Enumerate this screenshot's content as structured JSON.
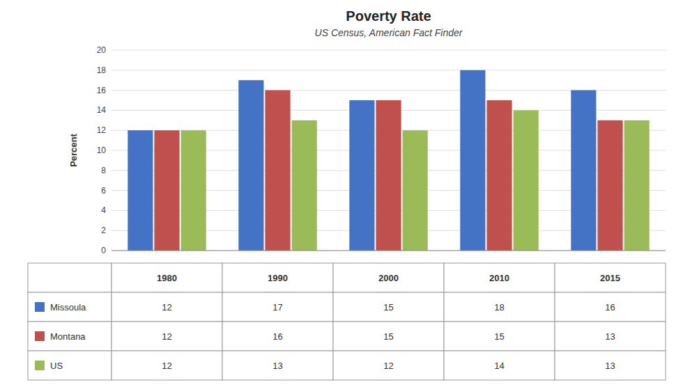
{
  "chart_data": {
    "type": "bar",
    "title": "Poverty Rate",
    "subtitle": "US Census, American Fact Finder",
    "ylabel": "Percent",
    "categories": [
      "1980",
      "1990",
      "2000",
      "2010",
      "2015"
    ],
    "series": [
      {
        "name": "Missoula",
        "color": "#4472C4",
        "values": [
          12,
          17,
          15,
          18,
          16
        ]
      },
      {
        "name": "Montana",
        "color": "#C0504D",
        "values": [
          12,
          16,
          15,
          15,
          13
        ]
      },
      {
        "name": "US",
        "color": "#9BBB59",
        "values": [
          12,
          13,
          12,
          14,
          13
        ]
      }
    ],
    "ylim": [
      0,
      20
    ],
    "yticks": [
      0,
      2,
      4,
      6,
      8,
      10,
      12,
      14,
      16,
      18,
      20
    ],
    "grid": true
  }
}
